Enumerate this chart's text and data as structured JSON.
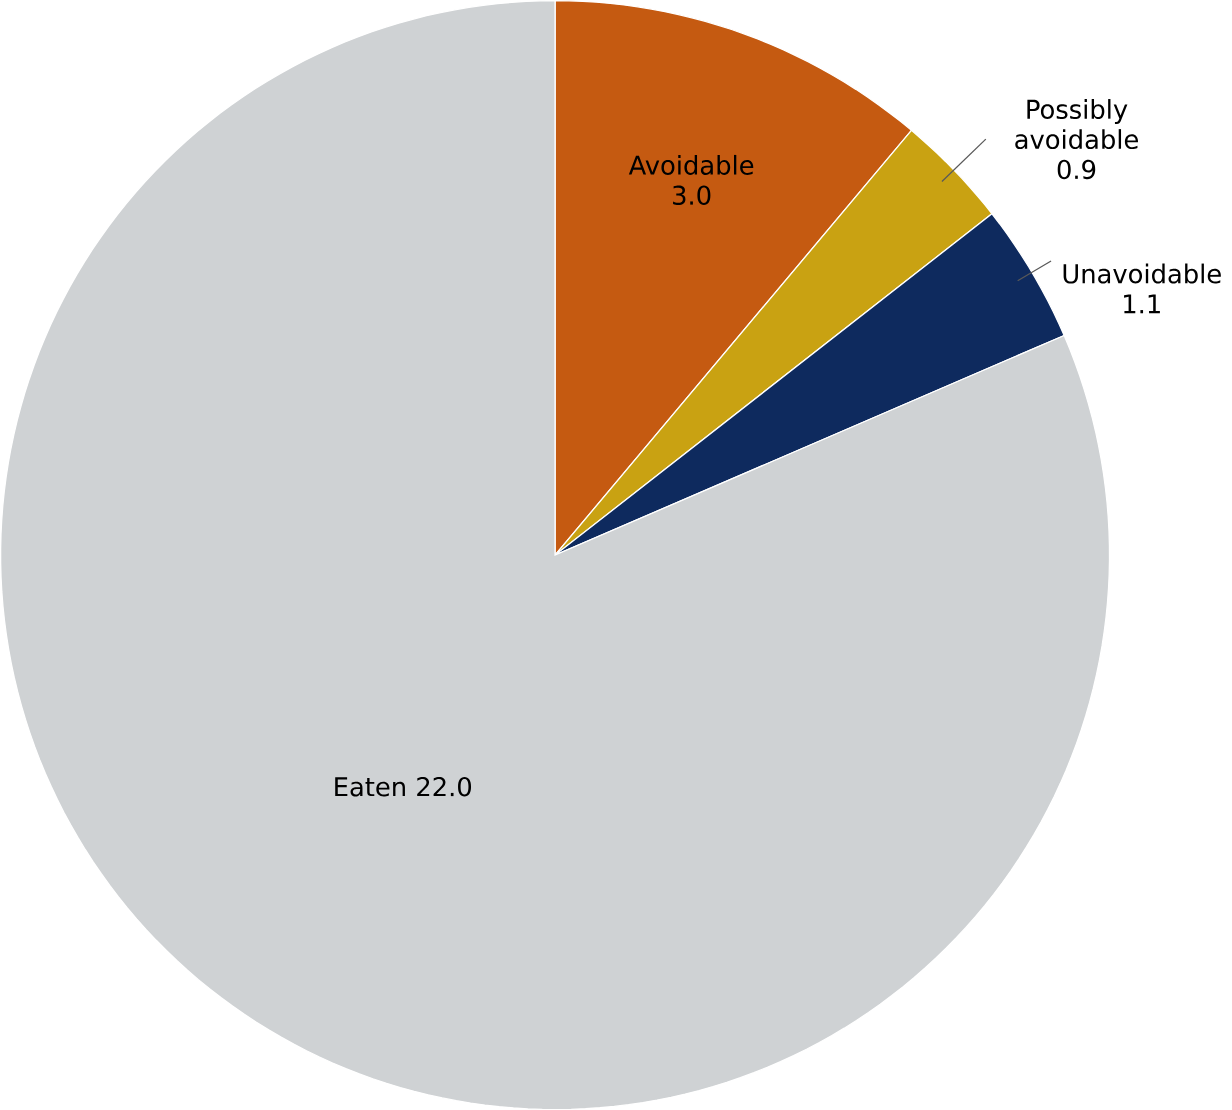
{
  "chart_data": {
    "type": "pie",
    "categories": [
      "Avoidable",
      "Possibly avoidable",
      "Unavoidable",
      "Eaten"
    ],
    "values": [
      3.0,
      0.9,
      1.1,
      22.0
    ],
    "value_labels": [
      "3.0",
      "0.9",
      "1.1",
      "22.0"
    ],
    "colors": [
      "#c55a11",
      "#c9a212",
      "#0e2a5e",
      "#cfd2d4"
    ]
  }
}
